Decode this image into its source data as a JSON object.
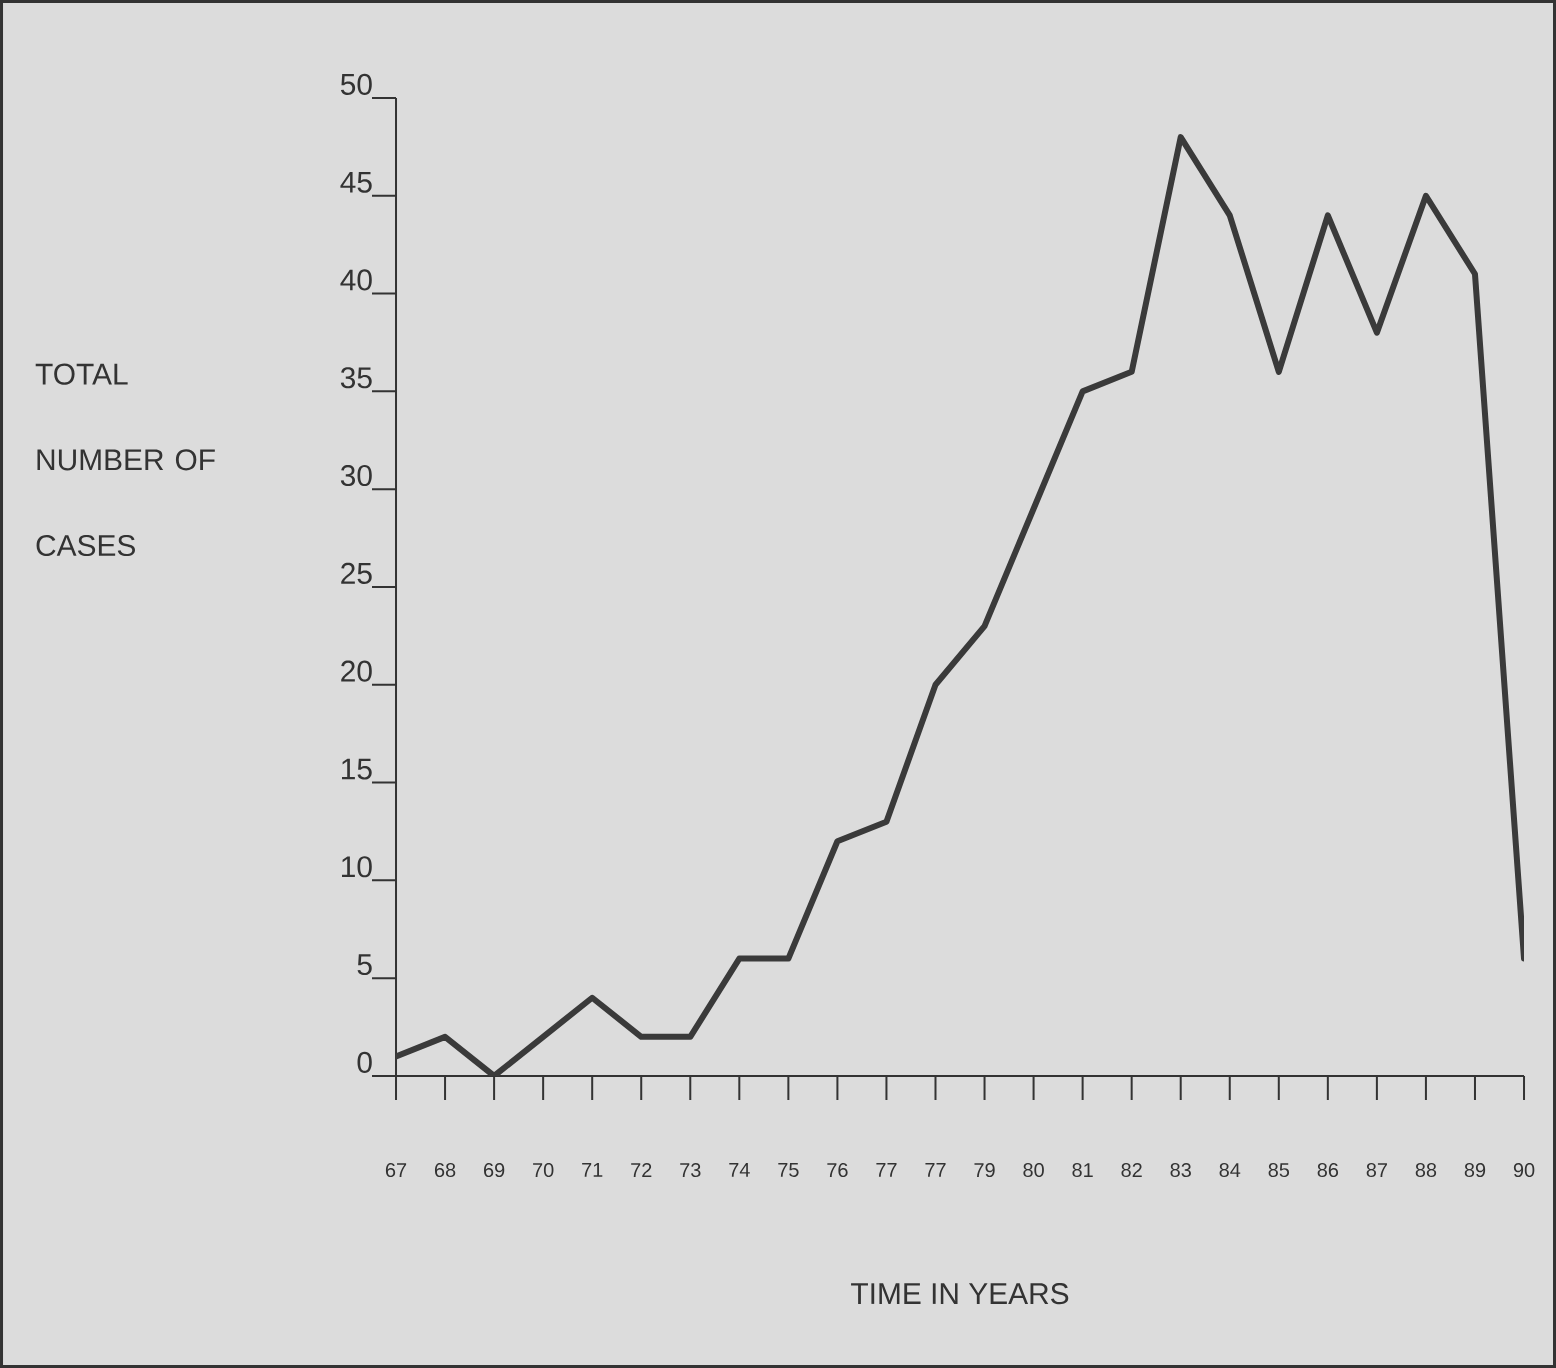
{
  "chart_data": {
    "type": "line",
    "xlabel": "TIME IN YEARS",
    "ylabel": "TOTAL NUMBER OF CASES",
    "categories": [
      "67",
      "68",
      "69",
      "70",
      "71",
      "72",
      "73",
      "74",
      "75",
      "76",
      "77",
      "77",
      "79",
      "80",
      "81",
      "82",
      "83",
      "84",
      "85",
      "86",
      "87",
      "88",
      "89",
      "90"
    ],
    "values": [
      1,
      2,
      0,
      2,
      4,
      2,
      2,
      6,
      6,
      12,
      13,
      20,
      23,
      29,
      35,
      36,
      48,
      44,
      36,
      44,
      38,
      45,
      41,
      6
    ],
    "color": "#3a3a3a",
    "ylim": [
      0,
      50
    ],
    "yticks": [
      0,
      5,
      10,
      15,
      20,
      25,
      30,
      35,
      40,
      45,
      50
    ]
  }
}
